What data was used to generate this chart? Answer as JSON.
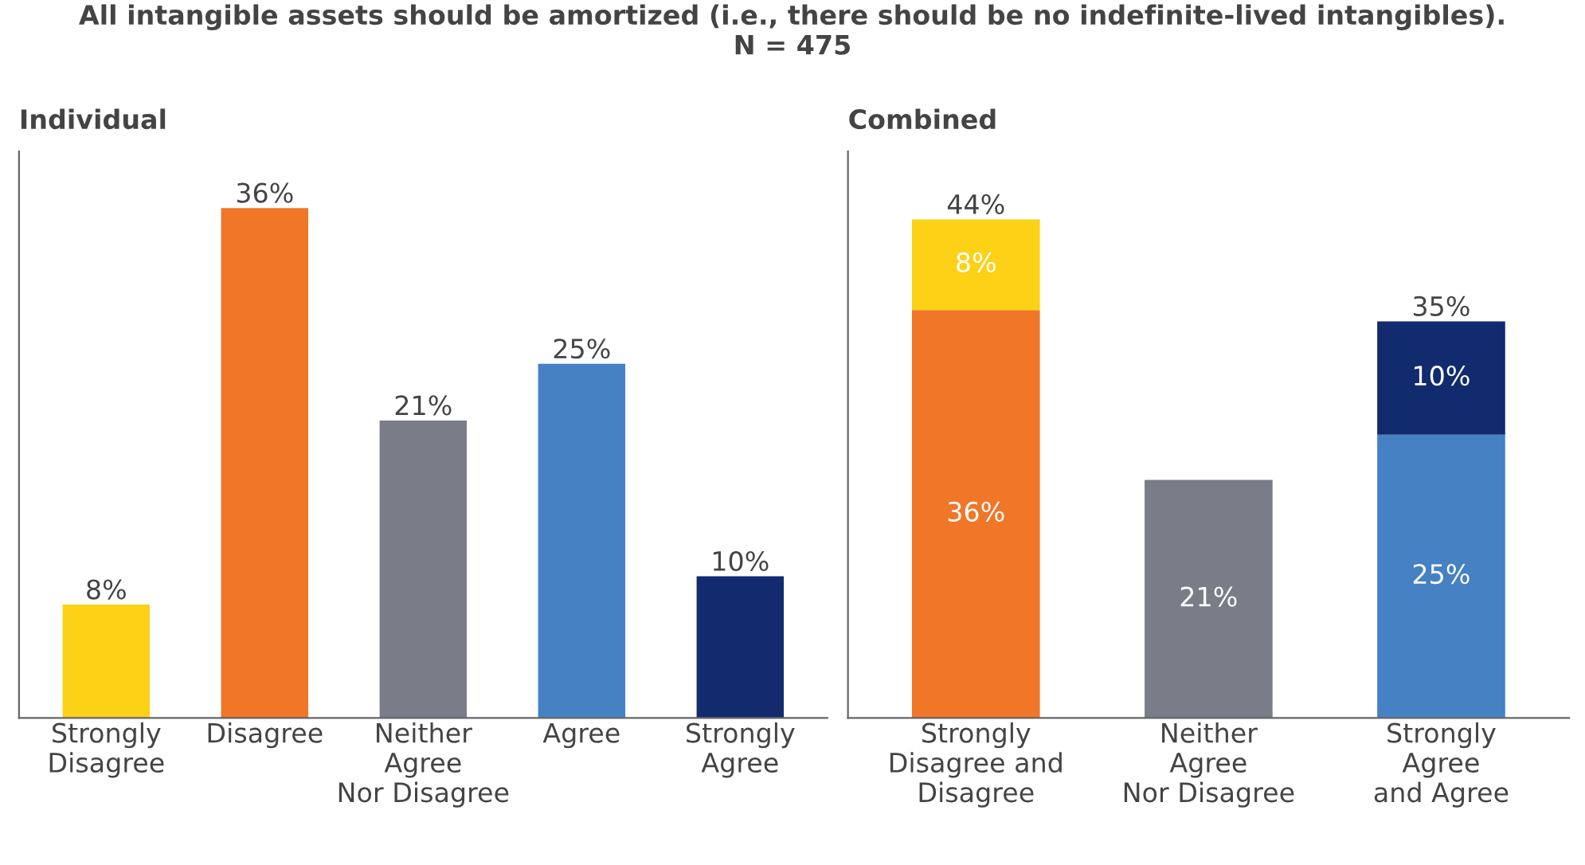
{
  "chart_data": [
    {
      "type": "bar",
      "title": "All intangible assets should be amortized (i.e., there should be no indefinite-lived intangibles).\nN = 475",
      "subtitle": "Individual",
      "categories": [
        "Strongly\nDisagree",
        "Disagree",
        "Neither\nAgree\nNor Disagree",
        "Agree",
        "Strongly\nAgree"
      ],
      "values": [
        8,
        36,
        21,
        25,
        10
      ],
      "colors": [
        "#fcd116",
        "#f07628",
        "#7a7d87",
        "#4581c3",
        "#122b6e"
      ],
      "value_labels": [
        "8%",
        "36%",
        "21%",
        "25%",
        "10%"
      ],
      "ylim": [
        0,
        40
      ],
      "tick_labels": "x",
      "grid": false,
      "legend": false
    },
    {
      "type": "bar",
      "subtitle": "Combined",
      "stacked": true,
      "categories": [
        "Strongly\nDisagree and\nDisagree",
        "Neither\nAgree\nNor Disagree",
        "Strongly\nAgree\nand Agree"
      ],
      "series": [
        {
          "values": [
            36,
            21,
            25
          ],
          "colors": [
            "#f07628",
            "#7a7d87",
            "#4581c3"
          ],
          "value_labels": [
            "36%",
            "21%",
            "25%"
          ]
        },
        {
          "values": [
            8,
            null,
            10
          ],
          "colors": [
            "#fcd116",
            null,
            "#122b6e"
          ],
          "value_labels": [
            "8%",
            null,
            "10%"
          ]
        }
      ],
      "totals": [
        "44%",
        null,
        "35%"
      ],
      "ylim": [
        0,
        50
      ],
      "tick_labels": "x",
      "grid": false,
      "legend": false
    }
  ]
}
